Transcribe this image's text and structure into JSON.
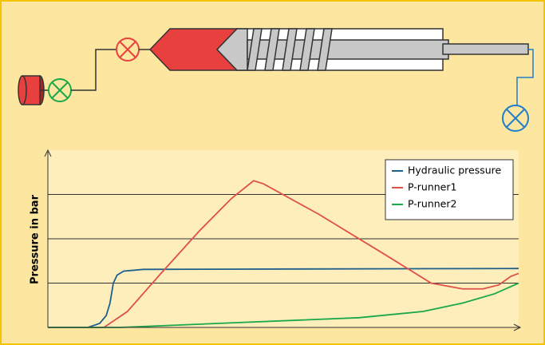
{
  "chart_data": {
    "type": "line",
    "ylabel": "Pressure in bar",
    "xlim": [
      0,
      100
    ],
    "ylim": [
      0,
      4
    ],
    "yticks": [
      1,
      2,
      3
    ],
    "grid": true,
    "legend": "upper right",
    "series": [
      {
        "name": "Hydraulic pressure",
        "color": "#1f5f8b",
        "x": [
          0,
          8.5,
          11,
          12.4,
          13.2,
          13.9,
          14.7,
          16.1,
          20.3,
          100
        ],
        "values": [
          0,
          0,
          0.09,
          0.27,
          0.55,
          1,
          1.18,
          1.27,
          1.31,
          1.33
        ]
      },
      {
        "name": "P-runner1",
        "color": "#e0504a",
        "x": [
          0,
          11.9,
          16.9,
          23.7,
          32.2,
          39,
          43.7,
          45.8,
          57.6,
          71.2,
          81.4,
          88.1,
          92.4,
          95.8,
          98.3,
          100
        ],
        "values": [
          0,
          0,
          0.36,
          1.18,
          2.18,
          2.91,
          3.31,
          3.24,
          2.55,
          1.67,
          1,
          0.87,
          0.87,
          0.96,
          1.15,
          1.22
        ]
      },
      {
        "name": "P-runner2",
        "color": "#1aa84a",
        "x": [
          0,
          15.3,
          40.7,
          66.1,
          79.7,
          88.1,
          94.9,
          100
        ],
        "values": [
          0,
          0,
          0.11,
          0.22,
          0.36,
          0.55,
          0.76,
          1
        ]
      }
    ]
  }
}
